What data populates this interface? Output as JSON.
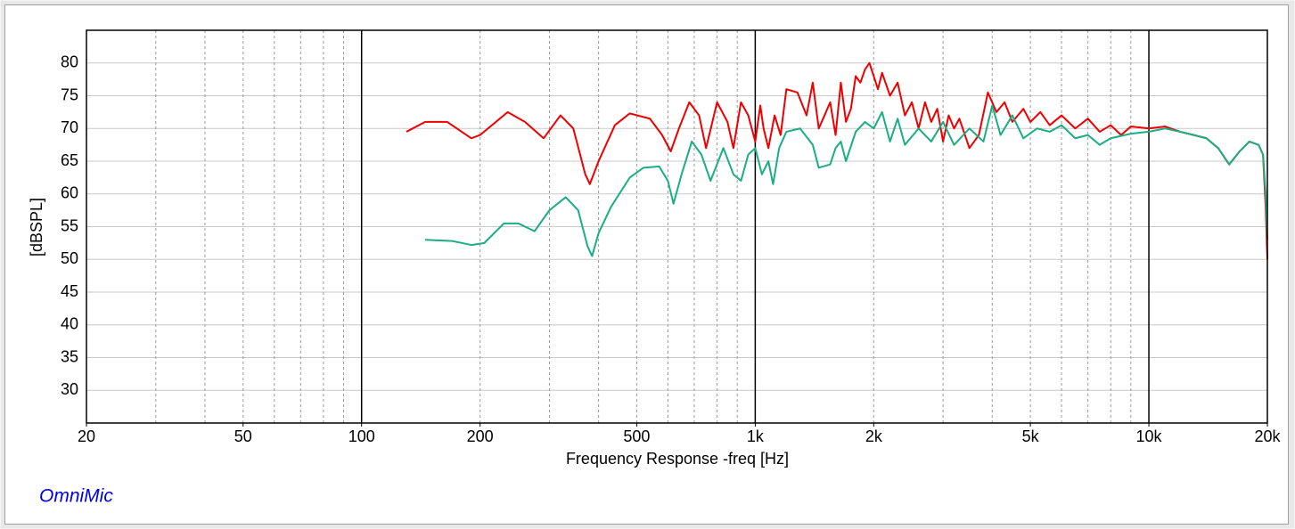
{
  "chart_data": {
    "type": "line",
    "xscale": "log",
    "x_label": "Frequency Response -freq [Hz]",
    "y_label": "[dBSPL]",
    "annotation": "OmniMic",
    "xlim": [
      20,
      20000
    ],
    "ylim": [
      25,
      85
    ],
    "xticks": [
      20,
      50,
      100,
      200,
      500,
      {
        "value": 1000,
        "label": "1k"
      },
      {
        "value": 2000,
        "label": "2k"
      },
      {
        "value": 5000,
        "label": "5k"
      },
      {
        "value": 10000,
        "label": "10k"
      },
      {
        "value": 20000,
        "label": "20k"
      }
    ],
    "yticks": [
      30,
      35,
      40,
      45,
      50,
      55,
      60,
      65,
      70,
      75,
      80
    ],
    "xgrid": [
      30,
      40,
      50,
      60,
      70,
      80,
      90,
      200,
      300,
      400,
      500,
      600,
      700,
      800,
      900,
      2000,
      3000,
      4000,
      5000,
      6000,
      7000,
      8000,
      9000
    ],
    "xgrid_major": [
      100,
      1000,
      10000
    ],
    "grid": true,
    "series": [
      {
        "color": "#ee0000",
        "x": [
          130,
          145,
          165,
          190,
          200,
          235,
          260,
          290,
          320,
          345,
          370,
          380,
          400,
          440,
          480,
          540,
          580,
          610,
          640,
          680,
          720,
          750,
          800,
          850,
          880,
          920,
          960,
          1000,
          1030,
          1050,
          1080,
          1120,
          1160,
          1200,
          1280,
          1350,
          1400,
          1450,
          1500,
          1550,
          1600,
          1650,
          1700,
          1750,
          1800,
          1850,
          1900,
          1950,
          2000,
          2050,
          2100,
          2200,
          2300,
          2400,
          2500,
          2600,
          2700,
          2800,
          2900,
          3000,
          3100,
          3200,
          3300,
          3500,
          3700,
          3900,
          4100,
          4300,
          4500,
          4800,
          5000,
          5300,
          5600,
          6000,
          6500,
          7000,
          7500,
          8000,
          8500,
          9000,
          10000,
          11000,
          12000,
          13000,
          14000,
          15000,
          16000,
          17000,
          18000,
          19000,
          19500,
          19800,
          20000
        ],
        "values": [
          69.5,
          71,
          71,
          68.5,
          69,
          72.5,
          71,
          68.5,
          72,
          70,
          63,
          61.5,
          65,
          70.5,
          72.3,
          71.5,
          69,
          66.5,
          70,
          74,
          72,
          67,
          74,
          71,
          67,
          74,
          72,
          68,
          73.5,
          70,
          67,
          72,
          69,
          76,
          75.5,
          72,
          77,
          70,
          72,
          74,
          69,
          77,
          71,
          73,
          78,
          77,
          79,
          80,
          78,
          76,
          78.5,
          75,
          77,
          72,
          74,
          70,
          74,
          71,
          73,
          68,
          72,
          70,
          71.5,
          67,
          69,
          75.5,
          72.5,
          74,
          71,
          73,
          71,
          72.5,
          70.5,
          72,
          70,
          71.5,
          69.5,
          70.5,
          69,
          70.3,
          70,
          70.3,
          69.5,
          69,
          68.5,
          67,
          64.5,
          66.5,
          68,
          67.5,
          66,
          58,
          50
        ]
      },
      {
        "color": "#1aae82",
        "x": [
          145,
          170,
          190,
          205,
          230,
          250,
          275,
          300,
          330,
          355,
          375,
          385,
          400,
          430,
          480,
          520,
          570,
          600,
          620,
          650,
          690,
          730,
          770,
          830,
          880,
          920,
          960,
          1000,
          1040,
          1080,
          1110,
          1150,
          1200,
          1300,
          1400,
          1450,
          1550,
          1600,
          1650,
          1700,
          1800,
          1900,
          2000,
          2100,
          2200,
          2300,
          2400,
          2600,
          2800,
          3000,
          3200,
          3500,
          3800,
          4000,
          4200,
          4500,
          4800,
          5200,
          5600,
          6000,
          6500,
          7000,
          7500,
          8000,
          9000,
          10000,
          11000,
          12000,
          13000,
          14000,
          15000,
          16000,
          17000,
          18000,
          19000,
          19500,
          19800,
          20000
        ],
        "values": [
          53,
          52.8,
          52.2,
          52.5,
          55.5,
          55.5,
          54.3,
          57.5,
          59.5,
          57.5,
          52,
          50.5,
          54,
          58,
          62.5,
          64,
          64.2,
          62,
          58.5,
          63,
          68,
          66,
          62,
          67,
          63,
          62,
          66,
          67,
          63,
          65,
          61.5,
          67,
          69.5,
          70,
          67.5,
          64,
          64.5,
          67,
          68,
          65,
          69.5,
          71,
          70,
          72.5,
          68,
          71.5,
          67.5,
          70,
          68,
          71,
          67.5,
          70,
          68,
          73.5,
          69,
          72,
          68.5,
          70,
          69.5,
          70.5,
          68.5,
          69,
          67.5,
          68.5,
          69.2,
          69.5,
          70,
          69.5,
          69,
          68.5,
          67,
          64.5,
          66.5,
          68,
          67.5,
          66,
          60,
          53
        ]
      }
    ]
  }
}
